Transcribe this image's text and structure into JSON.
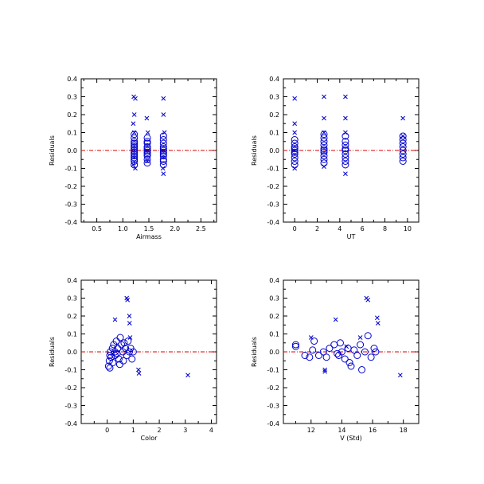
{
  "colors": {
    "points": "#0000cc",
    "zero_line": "#dd0000",
    "axes": "#000000"
  },
  "chart_data": [
    {
      "type": "scatter",
      "xlabel": "Airmass",
      "ylabel": "Residuals",
      "xlim": [
        0.2,
        2.8
      ],
      "ylim": [
        -0.4,
        0.4
      ],
      "x_ticks": [
        "0.5",
        "1.0",
        "1.5",
        "2.0",
        "2.5"
      ],
      "x_tick_values": [
        0.5,
        1.0,
        1.5,
        2.0,
        2.5
      ],
      "y_ticks": [
        "0.4",
        "0.3",
        "0.2",
        "0.1",
        "0.0",
        "-0.1",
        "-0.2",
        "-0.3",
        "-0.4"
      ],
      "y_tick_values": [
        0.4,
        0.3,
        0.2,
        0.1,
        0.0,
        -0.1,
        -0.2,
        -0.3,
        -0.4
      ],
      "zero_line": 0.0,
      "series": [
        {
          "marker": "circle",
          "points": [
            [
              1.22,
              0.09
            ],
            [
              1.22,
              0.07
            ],
            [
              1.22,
              0.05
            ],
            [
              1.22,
              0.04
            ],
            [
              1.22,
              0.03
            ],
            [
              1.22,
              0.02
            ],
            [
              1.22,
              0.01
            ],
            [
              1.22,
              0.0
            ],
            [
              1.22,
              -0.01
            ],
            [
              1.22,
              -0.02
            ],
            [
              1.22,
              -0.03
            ],
            [
              1.22,
              -0.04
            ],
            [
              1.22,
              -0.05
            ],
            [
              1.22,
              -0.06
            ],
            [
              1.22,
              -0.08
            ],
            [
              1.47,
              0.07
            ],
            [
              1.47,
              0.05
            ],
            [
              1.47,
              0.04
            ],
            [
              1.47,
              0.02
            ],
            [
              1.47,
              0.01
            ],
            [
              1.47,
              0.0
            ],
            [
              1.47,
              -0.01
            ],
            [
              1.47,
              -0.02
            ],
            [
              1.47,
              -0.03
            ],
            [
              1.47,
              -0.05
            ],
            [
              1.47,
              -0.07
            ],
            [
              1.78,
              0.08
            ],
            [
              1.78,
              0.06
            ],
            [
              1.78,
              0.04
            ],
            [
              1.78,
              0.02
            ],
            [
              1.78,
              0.01
            ],
            [
              1.78,
              0.0
            ],
            [
              1.78,
              -0.01
            ],
            [
              1.78,
              -0.02
            ],
            [
              1.78,
              -0.03
            ],
            [
              1.78,
              -0.05
            ],
            [
              1.78,
              -0.06
            ],
            [
              1.78,
              -0.08
            ]
          ]
        },
        {
          "marker": "x",
          "points": [
            [
              1.21,
              0.3
            ],
            [
              1.24,
              0.29
            ],
            [
              1.22,
              0.2
            ],
            [
              1.2,
              0.15
            ],
            [
              1.22,
              0.1
            ],
            [
              1.2,
              -0.08
            ],
            [
              1.24,
              -0.1
            ],
            [
              1.46,
              0.18
            ],
            [
              1.48,
              0.1
            ],
            [
              1.47,
              -0.06
            ],
            [
              1.78,
              0.29
            ],
            [
              1.78,
              0.2
            ],
            [
              1.8,
              0.1
            ],
            [
              1.77,
              -0.1
            ],
            [
              1.78,
              -0.13
            ]
          ]
        }
      ]
    },
    {
      "type": "scatter",
      "xlabel": "UT",
      "ylabel": "Residuals",
      "xlim": [
        -1,
        11
      ],
      "ylim": [
        -0.4,
        0.4
      ],
      "x_ticks": [
        "0",
        "2",
        "4",
        "6",
        "8",
        "10"
      ],
      "x_tick_values": [
        0,
        2,
        4,
        6,
        8,
        10
      ],
      "y_ticks": [
        "0.4",
        "0.3",
        "0.2",
        "0.1",
        "0.0",
        "-0.1",
        "-0.2",
        "-0.3",
        "-0.4"
      ],
      "y_tick_values": [
        0.4,
        0.3,
        0.2,
        0.1,
        0.0,
        -0.1,
        -0.2,
        -0.3,
        -0.4
      ],
      "zero_line": 0.0,
      "series": [
        {
          "marker": "circle",
          "points": [
            [
              0.0,
              0.06
            ],
            [
              0.0,
              0.04
            ],
            [
              0.0,
              0.02
            ],
            [
              0.0,
              0.01
            ],
            [
              0.0,
              0.0
            ],
            [
              0.0,
              -0.01
            ],
            [
              0.0,
              -0.02
            ],
            [
              0.0,
              -0.04
            ],
            [
              0.0,
              -0.06
            ],
            [
              0.0,
              -0.08
            ],
            [
              2.6,
              0.09
            ],
            [
              2.6,
              0.07
            ],
            [
              2.6,
              0.05
            ],
            [
              2.6,
              0.03
            ],
            [
              2.6,
              0.01
            ],
            [
              2.6,
              0.0
            ],
            [
              2.6,
              -0.01
            ],
            [
              2.6,
              -0.03
            ],
            [
              2.6,
              -0.05
            ],
            [
              2.6,
              -0.07
            ],
            [
              4.5,
              0.08
            ],
            [
              4.5,
              0.05
            ],
            [
              4.5,
              0.03
            ],
            [
              4.5,
              0.01
            ],
            [
              4.5,
              0.0
            ],
            [
              4.5,
              -0.02
            ],
            [
              4.5,
              -0.04
            ],
            [
              4.5,
              -0.06
            ],
            [
              4.5,
              -0.08
            ],
            [
              9.6,
              0.08
            ],
            [
              9.6,
              0.06
            ],
            [
              9.6,
              0.04
            ],
            [
              9.6,
              0.02
            ],
            [
              9.6,
              0.0
            ],
            [
              9.6,
              -0.02
            ],
            [
              9.6,
              -0.04
            ],
            [
              9.6,
              -0.06
            ]
          ]
        },
        {
          "marker": "x",
          "points": [
            [
              0.0,
              0.29
            ],
            [
              0.0,
              0.15
            ],
            [
              0.0,
              0.1
            ],
            [
              0.0,
              -0.1
            ],
            [
              2.6,
              0.3
            ],
            [
              2.6,
              0.18
            ],
            [
              2.6,
              0.1
            ],
            [
              2.6,
              -0.09
            ],
            [
              4.5,
              0.3
            ],
            [
              4.5,
              0.18
            ],
            [
              4.5,
              0.1
            ],
            [
              4.5,
              -0.13
            ],
            [
              9.6,
              0.18
            ],
            [
              9.6,
              0.08
            ]
          ]
        }
      ]
    },
    {
      "type": "scatter",
      "xlabel": "Color",
      "ylabel": "Residuals",
      "xlim": [
        -1,
        4.2
      ],
      "ylim": [
        -0.4,
        0.4
      ],
      "x_ticks": [
        "0",
        "1",
        "2",
        "3",
        "4"
      ],
      "x_tick_values": [
        0,
        1,
        2,
        3,
        4
      ],
      "y_ticks": [
        "0.4",
        "0.3",
        "0.2",
        "0.1",
        "0.0",
        "-0.1",
        "-0.2",
        "-0.3",
        "-0.4"
      ],
      "y_tick_values": [
        0.4,
        0.3,
        0.2,
        0.1,
        0.0,
        -0.1,
        -0.2,
        -0.3,
        -0.4
      ],
      "zero_line": 0.0,
      "series": [
        {
          "marker": "circle",
          "points": [
            [
              0.05,
              -0.08
            ],
            [
              0.08,
              -0.05
            ],
            [
              0.1,
              -0.02
            ],
            [
              0.12,
              0.0
            ],
            [
              0.15,
              -0.03
            ],
            [
              0.2,
              0.02
            ],
            [
              0.22,
              -0.06
            ],
            [
              0.25,
              0.04
            ],
            [
              0.3,
              -0.02
            ],
            [
              0.35,
              0.06
            ],
            [
              0.38,
              -0.01
            ],
            [
              0.4,
              0.02
            ],
            [
              0.45,
              -0.04
            ],
            [
              0.5,
              0.08
            ],
            [
              0.55,
              0.04
            ],
            [
              0.6,
              0.0
            ],
            [
              0.62,
              -0.05
            ],
            [
              0.65,
              0.05
            ],
            [
              0.7,
              0.02
            ],
            [
              0.75,
              -0.02
            ],
            [
              0.8,
              0.06
            ],
            [
              0.85,
              0.0
            ],
            [
              0.9,
              0.02
            ],
            [
              0.95,
              -0.04
            ],
            [
              1.0,
              0.0
            ],
            [
              0.3,
              0.0
            ],
            [
              0.48,
              -0.07
            ],
            [
              0.1,
              -0.09
            ]
          ]
        },
        {
          "marker": "x",
          "points": [
            [
              0.3,
              0.18
            ],
            [
              0.75,
              0.3
            ],
            [
              0.78,
              0.29
            ],
            [
              0.85,
              0.2
            ],
            [
              0.86,
              0.16
            ],
            [
              0.88,
              0.08
            ],
            [
              1.2,
              -0.1
            ],
            [
              1.22,
              -0.12
            ],
            [
              3.1,
              -0.13
            ]
          ]
        }
      ]
    },
    {
      "type": "scatter",
      "xlabel": "V (Std)",
      "ylabel": "Residuals",
      "xlim": [
        10.2,
        19
      ],
      "ylim": [
        -0.4,
        0.4
      ],
      "x_ticks": [
        "12",
        "14",
        "16",
        "18"
      ],
      "x_tick_values": [
        12,
        14,
        16,
        18
      ],
      "y_ticks": [
        "0.4",
        "0.3",
        "0.2",
        "0.1",
        "0.0",
        "-0.1",
        "-0.2",
        "-0.3",
        "-0.4"
      ],
      "y_tick_values": [
        0.4,
        0.3,
        0.2,
        0.1,
        0.0,
        -0.1,
        -0.2,
        -0.3,
        -0.4
      ],
      "zero_line": 0.0,
      "series": [
        {
          "marker": "circle",
          "points": [
            [
              11.0,
              0.04
            ],
            [
              11.0,
              0.03
            ],
            [
              11.6,
              -0.02
            ],
            [
              11.9,
              -0.03
            ],
            [
              12.1,
              0.01
            ],
            [
              12.2,
              0.06
            ],
            [
              12.5,
              -0.02
            ],
            [
              12.8,
              0.0
            ],
            [
              13.0,
              -0.03
            ],
            [
              13.2,
              0.02
            ],
            [
              13.5,
              0.04
            ],
            [
              13.7,
              -0.01
            ],
            [
              13.9,
              0.05
            ],
            [
              14.0,
              0.0
            ],
            [
              14.2,
              -0.04
            ],
            [
              14.4,
              0.02
            ],
            [
              14.6,
              -0.08
            ],
            [
              14.8,
              0.01
            ],
            [
              15.0,
              -0.02
            ],
            [
              15.2,
              0.04
            ],
            [
              15.5,
              0.0
            ],
            [
              15.7,
              0.09
            ],
            [
              15.9,
              -0.03
            ],
            [
              16.1,
              0.02
            ],
            [
              16.2,
              0.0
            ],
            [
              14.5,
              -0.06
            ],
            [
              15.3,
              -0.1
            ],
            [
              13.8,
              -0.02
            ]
          ]
        },
        {
          "marker": "x",
          "points": [
            [
              12.0,
              0.08
            ],
            [
              12.9,
              -0.1
            ],
            [
              12.9,
              -0.11
            ],
            [
              13.6,
              0.18
            ],
            [
              14.3,
              0.03
            ],
            [
              15.2,
              0.08
            ],
            [
              15.6,
              0.3
            ],
            [
              15.7,
              0.29
            ],
            [
              16.3,
              0.19
            ],
            [
              16.35,
              0.16
            ],
            [
              17.8,
              -0.13
            ]
          ]
        }
      ]
    }
  ]
}
